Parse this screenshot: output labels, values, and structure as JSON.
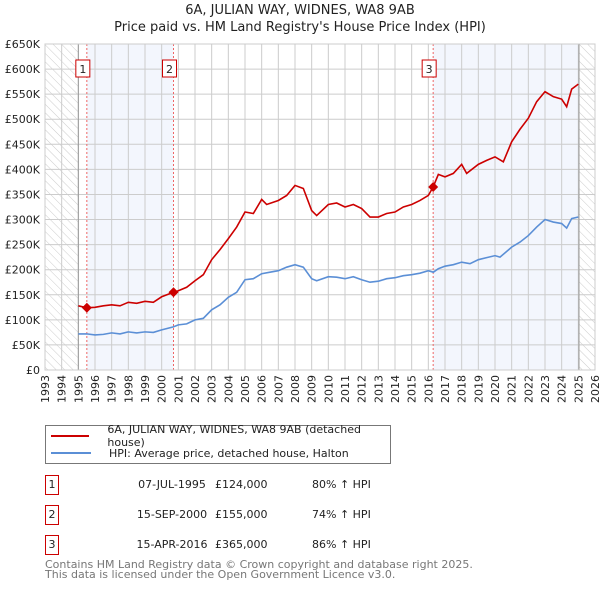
{
  "chart_data": {
    "type": "line",
    "title": "6A, JULIAN WAY, WIDNES, WA8 9AB",
    "subtitle": "Price paid vs. HM Land Registry's House Price Index (HPI)",
    "xlim": [
      1993,
      2026
    ],
    "ylim": [
      0,
      650000
    ],
    "grid": true,
    "x_ticks": [
      "1993",
      "1994",
      "1995",
      "1996",
      "1997",
      "1998",
      "1999",
      "2000",
      "2001",
      "2002",
      "2003",
      "2004",
      "2005",
      "2006",
      "2007",
      "2008",
      "2009",
      "2010",
      "2011",
      "2012",
      "2013",
      "2014",
      "2015",
      "2016",
      "2017",
      "2018",
      "2019",
      "2020",
      "2021",
      "2022",
      "2023",
      "2024",
      "2025",
      "2026"
    ],
    "y_ticks": [
      {
        "v": 0,
        "label": "£0"
      },
      {
        "v": 50000,
        "label": "£50K"
      },
      {
        "v": 100000,
        "label": "£100K"
      },
      {
        "v": 150000,
        "label": "£150K"
      },
      {
        "v": 200000,
        "label": "£200K"
      },
      {
        "v": 250000,
        "label": "£250K"
      },
      {
        "v": 300000,
        "label": "£300K"
      },
      {
        "v": 350000,
        "label": "£350K"
      },
      {
        "v": 400000,
        "label": "£400K"
      },
      {
        "v": 450000,
        "label": "£450K"
      },
      {
        "v": 500000,
        "label": "£500K"
      },
      {
        "v": 550000,
        "label": "£550K"
      },
      {
        "v": 600000,
        "label": "£600K"
      },
      {
        "v": 650000,
        "label": "£650K"
      }
    ],
    "hatched_ranges": [
      [
        1993,
        1995
      ],
      [
        2025.04,
        2026
      ]
    ],
    "shaded_ranges": [
      [
        1995.51,
        2000.71
      ],
      [
        2016.29,
        2025.04
      ]
    ],
    "series": [
      {
        "name": "6A, JULIAN WAY, WIDNES, WA8 9AB (detached house)",
        "color": "#cc0000",
        "points": [
          [
            1995.0,
            128000
          ],
          [
            1995.51,
            124000
          ],
          [
            1996,
            125000
          ],
          [
            1996.5,
            128000
          ],
          [
            1997,
            130000
          ],
          [
            1997.5,
            128000
          ],
          [
            1998,
            135000
          ],
          [
            1998.5,
            133000
          ],
          [
            1999,
            137000
          ],
          [
            1999.5,
            135000
          ],
          [
            2000,
            146000
          ],
          [
            2000.71,
            155000
          ],
          [
            2001,
            158000
          ],
          [
            2001.5,
            165000
          ],
          [
            2002,
            178000
          ],
          [
            2002.5,
            190000
          ],
          [
            2003,
            220000
          ],
          [
            2003.5,
            240000
          ],
          [
            2004,
            262000
          ],
          [
            2004.5,
            285000
          ],
          [
            2005,
            315000
          ],
          [
            2005.5,
            312000
          ],
          [
            2006,
            340000
          ],
          [
            2006.3,
            330000
          ],
          [
            2007,
            338000
          ],
          [
            2007.5,
            348000
          ],
          [
            2008,
            368000
          ],
          [
            2008.5,
            362000
          ],
          [
            2009,
            318000
          ],
          [
            2009.3,
            308000
          ],
          [
            2010,
            330000
          ],
          [
            2010.5,
            333000
          ],
          [
            2011,
            325000
          ],
          [
            2011.5,
            330000
          ],
          [
            2012,
            322000
          ],
          [
            2012.5,
            305000
          ],
          [
            2013,
            305000
          ],
          [
            2013.5,
            312000
          ],
          [
            2014,
            315000
          ],
          [
            2014.5,
            325000
          ],
          [
            2015,
            330000
          ],
          [
            2015.5,
            338000
          ],
          [
            2016,
            348000
          ],
          [
            2016.29,
            365000
          ],
          [
            2016.6,
            390000
          ],
          [
            2017,
            385000
          ],
          [
            2017.5,
            392000
          ],
          [
            2018,
            410000
          ],
          [
            2018.3,
            392000
          ],
          [
            2019,
            410000
          ],
          [
            2019.5,
            418000
          ],
          [
            2020,
            425000
          ],
          [
            2020.5,
            415000
          ],
          [
            2021,
            455000
          ],
          [
            2021.5,
            480000
          ],
          [
            2022,
            502000
          ],
          [
            2022.5,
            535000
          ],
          [
            2023,
            555000
          ],
          [
            2023.5,
            545000
          ],
          [
            2024,
            540000
          ],
          [
            2024.3,
            525000
          ],
          [
            2024.6,
            560000
          ],
          [
            2025,
            570000
          ]
        ]
      },
      {
        "name": "HPI: Average price, detached house, Halton",
        "color": "#5b8fd6",
        "points": [
          [
            1995.0,
            72000
          ],
          [
            1995.5,
            72000
          ],
          [
            1996,
            70000
          ],
          [
            1996.5,
            71000
          ],
          [
            1997,
            74000
          ],
          [
            1997.5,
            72000
          ],
          [
            1998,
            76000
          ],
          [
            1998.5,
            74000
          ],
          [
            1999,
            76000
          ],
          [
            1999.5,
            75000
          ],
          [
            2000,
            80000
          ],
          [
            2000.7,
            86000
          ],
          [
            2001,
            90000
          ],
          [
            2001.5,
            92000
          ],
          [
            2002,
            100000
          ],
          [
            2002.5,
            103000
          ],
          [
            2003,
            120000
          ],
          [
            2003.5,
            130000
          ],
          [
            2004,
            145000
          ],
          [
            2004.5,
            155000
          ],
          [
            2005,
            180000
          ],
          [
            2005.5,
            182000
          ],
          [
            2006,
            192000
          ],
          [
            2006.5,
            195000
          ],
          [
            2007,
            198000
          ],
          [
            2007.5,
            205000
          ],
          [
            2008,
            210000
          ],
          [
            2008.5,
            205000
          ],
          [
            2009,
            182000
          ],
          [
            2009.3,
            178000
          ],
          [
            2010,
            186000
          ],
          [
            2010.5,
            185000
          ],
          [
            2011,
            182000
          ],
          [
            2011.5,
            186000
          ],
          [
            2012,
            180000
          ],
          [
            2012.5,
            175000
          ],
          [
            2013,
            177000
          ],
          [
            2013.5,
            182000
          ],
          [
            2014,
            184000
          ],
          [
            2014.5,
            188000
          ],
          [
            2015,
            190000
          ],
          [
            2015.5,
            193000
          ],
          [
            2016,
            198000
          ],
          [
            2016.3,
            195000
          ],
          [
            2016.6,
            202000
          ],
          [
            2017,
            207000
          ],
          [
            2017.5,
            210000
          ],
          [
            2018,
            215000
          ],
          [
            2018.5,
            212000
          ],
          [
            2019,
            220000
          ],
          [
            2019.5,
            224000
          ],
          [
            2020,
            228000
          ],
          [
            2020.3,
            225000
          ],
          [
            2021,
            245000
          ],
          [
            2021.5,
            255000
          ],
          [
            2022,
            268000
          ],
          [
            2022.5,
            285000
          ],
          [
            2023,
            300000
          ],
          [
            2023.5,
            295000
          ],
          [
            2024,
            292000
          ],
          [
            2024.3,
            283000
          ],
          [
            2024.6,
            302000
          ],
          [
            2025,
            305000
          ]
        ]
      }
    ],
    "sales": [
      {
        "id": "1",
        "x": 1995.51,
        "value": 124000
      },
      {
        "id": "2",
        "x": 2000.71,
        "value": 155000
      },
      {
        "id": "3",
        "x": 2016.29,
        "value": 365000
      }
    ]
  },
  "legend": [
    {
      "label": "6A, JULIAN WAY, WIDNES, WA8 9AB (detached house)",
      "color": "#cc0000"
    },
    {
      "label": "HPI: Average price, detached house, Halton",
      "color": "#5b8fd6"
    }
  ],
  "table": [
    {
      "id": "1",
      "date": "07-JUL-1995",
      "price": "£124,000",
      "hpi": "80% ↑ HPI"
    },
    {
      "id": "2",
      "date": "15-SEP-2000",
      "price": "£155,000",
      "hpi": "74% ↑ HPI"
    },
    {
      "id": "3",
      "date": "15-APR-2016",
      "price": "£365,000",
      "hpi": "86% ↑ HPI"
    }
  ],
  "footer": {
    "line1": "Contains HM Land Registry data © Crown copyright and database right 2025.",
    "line2": "This data is licensed under the Open Government Licence v3.0."
  }
}
